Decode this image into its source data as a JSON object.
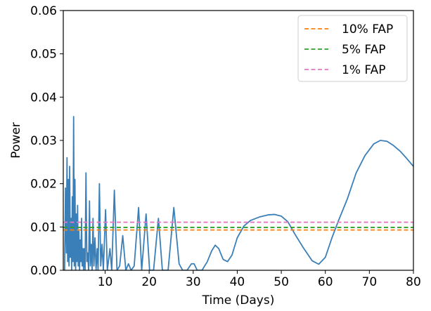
{
  "chart_data": {
    "type": "line",
    "xlabel": "Time (Days)",
    "ylabel": "Power",
    "xlim": [
      0.5,
      80
    ],
    "ylim": [
      0,
      0.06
    ],
    "x_ticks": [
      10,
      20,
      30,
      40,
      50,
      60,
      70,
      80
    ],
    "x_tick_labels": [
      "10",
      "20",
      "30",
      "40",
      "50",
      "60",
      "70",
      "80"
    ],
    "y_ticks": [
      0.0,
      0.01,
      0.02,
      0.03,
      0.04,
      0.05,
      0.06
    ],
    "y_tick_labels": [
      "0.00",
      "0.01",
      "0.02",
      "0.03",
      "0.04",
      "0.05",
      "0.06"
    ],
    "grid": false,
    "legend_position": "top-right",
    "series": [
      {
        "color": "#3b7fb8",
        "style": "solid",
        "points": [
          [
            0.8,
            0.0
          ],
          [
            1.0,
            0.019
          ],
          [
            1.2,
            0.004
          ],
          [
            1.35,
            0.026
          ],
          [
            1.5,
            0.002
          ],
          [
            1.65,
            0.021
          ],
          [
            1.8,
            0.001
          ],
          [
            1.95,
            0.024
          ],
          [
            2.1,
            0.003
          ],
          [
            2.25,
            0.012
          ],
          [
            2.4,
            0.0
          ],
          [
            2.55,
            0.017
          ],
          [
            2.7,
            0.002
          ],
          [
            2.85,
            0.0355
          ],
          [
            3.0,
            0.001
          ],
          [
            3.15,
            0.021
          ],
          [
            3.3,
            0.0
          ],
          [
            3.45,
            0.013
          ],
          [
            3.6,
            0.002
          ],
          [
            3.75,
            0.015
          ],
          [
            3.9,
            0.001
          ],
          [
            4.05,
            0.009
          ],
          [
            4.2,
            0.0
          ],
          [
            4.35,
            0.007
          ],
          [
            4.5,
            0.002
          ],
          [
            4.65,
            0.012
          ],
          [
            4.8,
            0.001
          ],
          [
            4.95,
            0.005
          ],
          [
            5.1,
            0.0
          ],
          [
            5.25,
            0.005
          ],
          [
            5.45,
            0.0
          ],
          [
            5.65,
            0.0225
          ],
          [
            5.85,
            0.002
          ],
          [
            6.05,
            0.004
          ],
          [
            6.25,
            0.0
          ],
          [
            6.45,
            0.016
          ],
          [
            6.65,
            0.001
          ],
          [
            6.85,
            0.006
          ],
          [
            7.05,
            0.0
          ],
          [
            7.25,
            0.012
          ],
          [
            7.45,
            0.001
          ],
          [
            7.7,
            0.0075
          ],
          [
            7.95,
            0.0
          ],
          [
            8.2,
            0.005
          ],
          [
            8.4,
            0.0
          ],
          [
            8.7,
            0.02
          ],
          [
            9.0,
            0.001
          ],
          [
            9.3,
            0.006
          ],
          [
            9.6,
            0.0
          ],
          [
            10.1,
            0.014
          ],
          [
            10.5,
            0.0
          ],
          [
            11.1,
            0.005
          ],
          [
            11.5,
            0.0
          ],
          [
            12.1,
            0.0185
          ],
          [
            12.7,
            0.0
          ],
          [
            13.3,
            0.001
          ],
          [
            14.0,
            0.008
          ],
          [
            14.7,
            0.0
          ],
          [
            15.3,
            0.0015
          ],
          [
            15.9,
            0.0
          ],
          [
            16.6,
            0.001
          ],
          [
            17.6,
            0.0145
          ],
          [
            18.3,
            0.0
          ],
          [
            19.3,
            0.013
          ],
          [
            20.1,
            0.0
          ],
          [
            21.0,
            0.0
          ],
          [
            22.1,
            0.012
          ],
          [
            23.0,
            0.0
          ],
          [
            24.3,
            0.0
          ],
          [
            25.6,
            0.0145
          ],
          [
            26.8,
            0.0015
          ],
          [
            27.6,
            0.0
          ],
          [
            28.6,
            0.0
          ],
          [
            29.6,
            0.0015
          ],
          [
            30.2,
            0.0015
          ],
          [
            30.9,
            0.0
          ],
          [
            32.0,
            0.0
          ],
          [
            33.2,
            0.002
          ],
          [
            34.2,
            0.0045
          ],
          [
            35.0,
            0.0058
          ],
          [
            35.8,
            0.005
          ],
          [
            36.8,
            0.0025
          ],
          [
            37.8,
            0.002
          ],
          [
            38.8,
            0.0035
          ],
          [
            40.0,
            0.0075
          ],
          [
            41.5,
            0.0102
          ],
          [
            43.0,
            0.0115
          ],
          [
            45.0,
            0.0123
          ],
          [
            47.0,
            0.0128
          ],
          [
            48.5,
            0.0129
          ],
          [
            50.0,
            0.0125
          ],
          [
            51.5,
            0.0112
          ],
          [
            53.0,
            0.0085
          ],
          [
            55.0,
            0.0052
          ],
          [
            57.0,
            0.0022
          ],
          [
            58.5,
            0.0014
          ],
          [
            60.0,
            0.003
          ],
          [
            61.5,
            0.0075
          ],
          [
            63.0,
            0.0115
          ],
          [
            65.0,
            0.0165
          ],
          [
            67.0,
            0.0225
          ],
          [
            69.0,
            0.0265
          ],
          [
            71.0,
            0.0292
          ],
          [
            72.5,
            0.03
          ],
          [
            74.0,
            0.0298
          ],
          [
            75.5,
            0.0288
          ],
          [
            77.0,
            0.0275
          ],
          [
            78.5,
            0.0258
          ],
          [
            80.0,
            0.024
          ]
        ]
      },
      {
        "name": "10% FAP",
        "color": "#ff7f0e",
        "style": "dashed",
        "y": 0.0093
      },
      {
        "name": "5% FAP",
        "color": "#2ca02c",
        "style": "dashed",
        "y": 0.0099
      },
      {
        "name": "1% FAP",
        "color": "#e377c2",
        "style": "dashed",
        "y": 0.0111
      }
    ],
    "legend": [
      "10% FAP",
      "5% FAP",
      "1% FAP"
    ]
  }
}
